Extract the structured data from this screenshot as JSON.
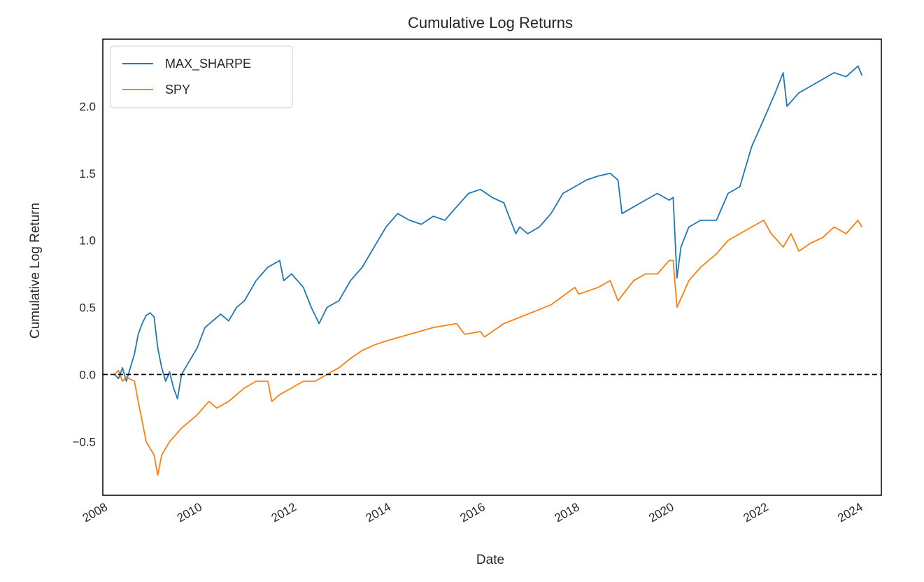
{
  "chart_data": {
    "type": "line",
    "title": "Cumulative Log Returns",
    "xlabel": "Date",
    "ylabel": "Cumulative Log Return",
    "xlim": [
      "2008-01-01",
      "2024-06-30"
    ],
    "ylim": [
      -0.9,
      2.5
    ],
    "x_ticks": [
      "2008",
      "2010",
      "2012",
      "2014",
      "2016",
      "2018",
      "2020",
      "2022",
      "2024"
    ],
    "y_ticks": [
      -0.5,
      0.0,
      0.5,
      1.0,
      1.5,
      2.0
    ],
    "y_tick_labels": [
      "−0.5",
      "0.0",
      "0.5",
      "1.0",
      "1.5",
      "2.0"
    ],
    "grid": false,
    "legend_position": "top-left",
    "reference_line": {
      "y": 0.0,
      "style": "dashed",
      "color": "#000000"
    },
    "colors": {
      "MAX_SHARPE": "#1f77b4",
      "SPY": "#ff7f0e"
    },
    "series": [
      {
        "name": "MAX_SHARPE",
        "points": [
          [
            "2008-04-01",
            0.0
          ],
          [
            "2008-05-01",
            -0.03
          ],
          [
            "2008-06-01",
            0.05
          ],
          [
            "2008-07-01",
            -0.05
          ],
          [
            "2008-08-01",
            0.05
          ],
          [
            "2008-09-01",
            0.15
          ],
          [
            "2008-10-01",
            0.3
          ],
          [
            "2008-11-01",
            0.38
          ],
          [
            "2008-12-01",
            0.44
          ],
          [
            "2009-01-01",
            0.46
          ],
          [
            "2009-02-01",
            0.43
          ],
          [
            "2009-03-01",
            0.2
          ],
          [
            "2009-04-01",
            0.05
          ],
          [
            "2009-05-01",
            -0.05
          ],
          [
            "2009-06-01",
            0.02
          ],
          [
            "2009-07-01",
            -0.1
          ],
          [
            "2009-08-01",
            -0.18
          ],
          [
            "2009-09-01",
            0.0
          ],
          [
            "2009-10-01",
            0.05
          ],
          [
            "2009-11-01",
            0.1
          ],
          [
            "2010-01-01",
            0.2
          ],
          [
            "2010-03-01",
            0.35
          ],
          [
            "2010-05-01",
            0.4
          ],
          [
            "2010-07-01",
            0.45
          ],
          [
            "2010-09-01",
            0.4
          ],
          [
            "2010-11-01",
            0.5
          ],
          [
            "2011-01-01",
            0.55
          ],
          [
            "2011-04-01",
            0.7
          ],
          [
            "2011-07-01",
            0.8
          ],
          [
            "2011-10-01",
            0.85
          ],
          [
            "2011-11-01",
            0.7
          ],
          [
            "2012-01-01",
            0.75
          ],
          [
            "2012-04-01",
            0.65
          ],
          [
            "2012-06-01",
            0.5
          ],
          [
            "2012-08-01",
            0.38
          ],
          [
            "2012-10-01",
            0.5
          ],
          [
            "2013-01-01",
            0.55
          ],
          [
            "2013-04-01",
            0.7
          ],
          [
            "2013-07-01",
            0.8
          ],
          [
            "2013-10-01",
            0.95
          ],
          [
            "2014-01-01",
            1.1
          ],
          [
            "2014-04-01",
            1.2
          ],
          [
            "2014-07-01",
            1.15
          ],
          [
            "2014-10-01",
            1.12
          ],
          [
            "2015-01-01",
            1.18
          ],
          [
            "2015-04-01",
            1.15
          ],
          [
            "2015-07-01",
            1.25
          ],
          [
            "2015-10-01",
            1.35
          ],
          [
            "2016-01-01",
            1.38
          ],
          [
            "2016-04-01",
            1.32
          ],
          [
            "2016-07-01",
            1.28
          ],
          [
            "2016-08-01",
            1.2
          ],
          [
            "2016-10-01",
            1.05
          ],
          [
            "2016-11-01",
            1.1
          ],
          [
            "2017-01-01",
            1.05
          ],
          [
            "2017-04-01",
            1.1
          ],
          [
            "2017-07-01",
            1.2
          ],
          [
            "2017-10-01",
            1.35
          ],
          [
            "2018-01-01",
            1.4
          ],
          [
            "2018-04-01",
            1.45
          ],
          [
            "2018-07-01",
            1.48
          ],
          [
            "2018-10-01",
            1.5
          ],
          [
            "2018-12-01",
            1.45
          ],
          [
            "2019-01-01",
            1.2
          ],
          [
            "2019-04-01",
            1.25
          ],
          [
            "2019-07-01",
            1.3
          ],
          [
            "2019-10-01",
            1.35
          ],
          [
            "2020-01-01",
            1.3
          ],
          [
            "2020-02-01",
            1.32
          ],
          [
            "2020-03-01",
            0.72
          ],
          [
            "2020-04-01",
            0.95
          ],
          [
            "2020-06-01",
            1.1
          ],
          [
            "2020-09-01",
            1.15
          ],
          [
            "2021-01-01",
            1.15
          ],
          [
            "2021-04-01",
            1.35
          ],
          [
            "2021-07-01",
            1.4
          ],
          [
            "2021-10-01",
            1.7
          ],
          [
            "2022-01-01",
            1.9
          ],
          [
            "2022-04-01",
            2.1
          ],
          [
            "2022-06-01",
            2.25
          ],
          [
            "2022-07-01",
            2.0
          ],
          [
            "2022-10-01",
            2.1
          ],
          [
            "2023-01-01",
            2.15
          ],
          [
            "2023-04-01",
            2.2
          ],
          [
            "2023-07-01",
            2.25
          ],
          [
            "2023-10-01",
            2.22
          ],
          [
            "2024-01-01",
            2.3
          ],
          [
            "2024-02-01",
            2.23
          ]
        ]
      },
      {
        "name": "SPY",
        "points": [
          [
            "2008-04-01",
            0.0
          ],
          [
            "2008-05-01",
            0.03
          ],
          [
            "2008-06-01",
            -0.05
          ],
          [
            "2008-07-01",
            -0.02
          ],
          [
            "2008-09-01",
            -0.05
          ],
          [
            "2008-10-01",
            -0.2
          ],
          [
            "2008-11-01",
            -0.35
          ],
          [
            "2008-12-01",
            -0.5
          ],
          [
            "2009-01-01",
            -0.55
          ],
          [
            "2009-02-01",
            -0.6
          ],
          [
            "2009-03-01",
            -0.75
          ],
          [
            "2009-04-01",
            -0.6
          ],
          [
            "2009-06-01",
            -0.5
          ],
          [
            "2009-09-01",
            -0.4
          ],
          [
            "2010-01-01",
            -0.3
          ],
          [
            "2010-04-01",
            -0.2
          ],
          [
            "2010-06-01",
            -0.25
          ],
          [
            "2010-09-01",
            -0.2
          ],
          [
            "2011-01-01",
            -0.1
          ],
          [
            "2011-04-01",
            -0.05
          ],
          [
            "2011-07-01",
            -0.05
          ],
          [
            "2011-08-01",
            -0.2
          ],
          [
            "2011-10-01",
            -0.15
          ],
          [
            "2012-01-01",
            -0.1
          ],
          [
            "2012-04-01",
            -0.05
          ],
          [
            "2012-07-01",
            -0.05
          ],
          [
            "2012-10-01",
            0.0
          ],
          [
            "2013-01-01",
            0.05
          ],
          [
            "2013-04-01",
            0.12
          ],
          [
            "2013-07-01",
            0.18
          ],
          [
            "2013-10-01",
            0.22
          ],
          [
            "2014-01-01",
            0.25
          ],
          [
            "2014-07-01",
            0.3
          ],
          [
            "2015-01-01",
            0.35
          ],
          [
            "2015-07-01",
            0.38
          ],
          [
            "2015-09-01",
            0.3
          ],
          [
            "2016-01-01",
            0.32
          ],
          [
            "2016-02-01",
            0.28
          ],
          [
            "2016-07-01",
            0.38
          ],
          [
            "2017-01-01",
            0.45
          ],
          [
            "2017-07-01",
            0.52
          ],
          [
            "2018-01-01",
            0.65
          ],
          [
            "2018-02-01",
            0.6
          ],
          [
            "2018-07-01",
            0.65
          ],
          [
            "2018-10-01",
            0.7
          ],
          [
            "2018-12-01",
            0.55
          ],
          [
            "2019-04-01",
            0.7
          ],
          [
            "2019-07-01",
            0.75
          ],
          [
            "2019-10-01",
            0.75
          ],
          [
            "2020-01-01",
            0.85
          ],
          [
            "2020-02-01",
            0.85
          ],
          [
            "2020-03-01",
            0.5
          ],
          [
            "2020-06-01",
            0.7
          ],
          [
            "2020-09-01",
            0.8
          ],
          [
            "2021-01-01",
            0.9
          ],
          [
            "2021-04-01",
            1.0
          ],
          [
            "2021-07-01",
            1.05
          ],
          [
            "2021-10-01",
            1.1
          ],
          [
            "2022-01-01",
            1.15
          ],
          [
            "2022-03-01",
            1.05
          ],
          [
            "2022-06-01",
            0.95
          ],
          [
            "2022-08-01",
            1.05
          ],
          [
            "2022-10-01",
            0.92
          ],
          [
            "2023-01-01",
            0.98
          ],
          [
            "2023-04-01",
            1.02
          ],
          [
            "2023-07-01",
            1.1
          ],
          [
            "2023-10-01",
            1.05
          ],
          [
            "2024-01-01",
            1.15
          ],
          [
            "2024-02-01",
            1.1
          ]
        ]
      }
    ]
  }
}
